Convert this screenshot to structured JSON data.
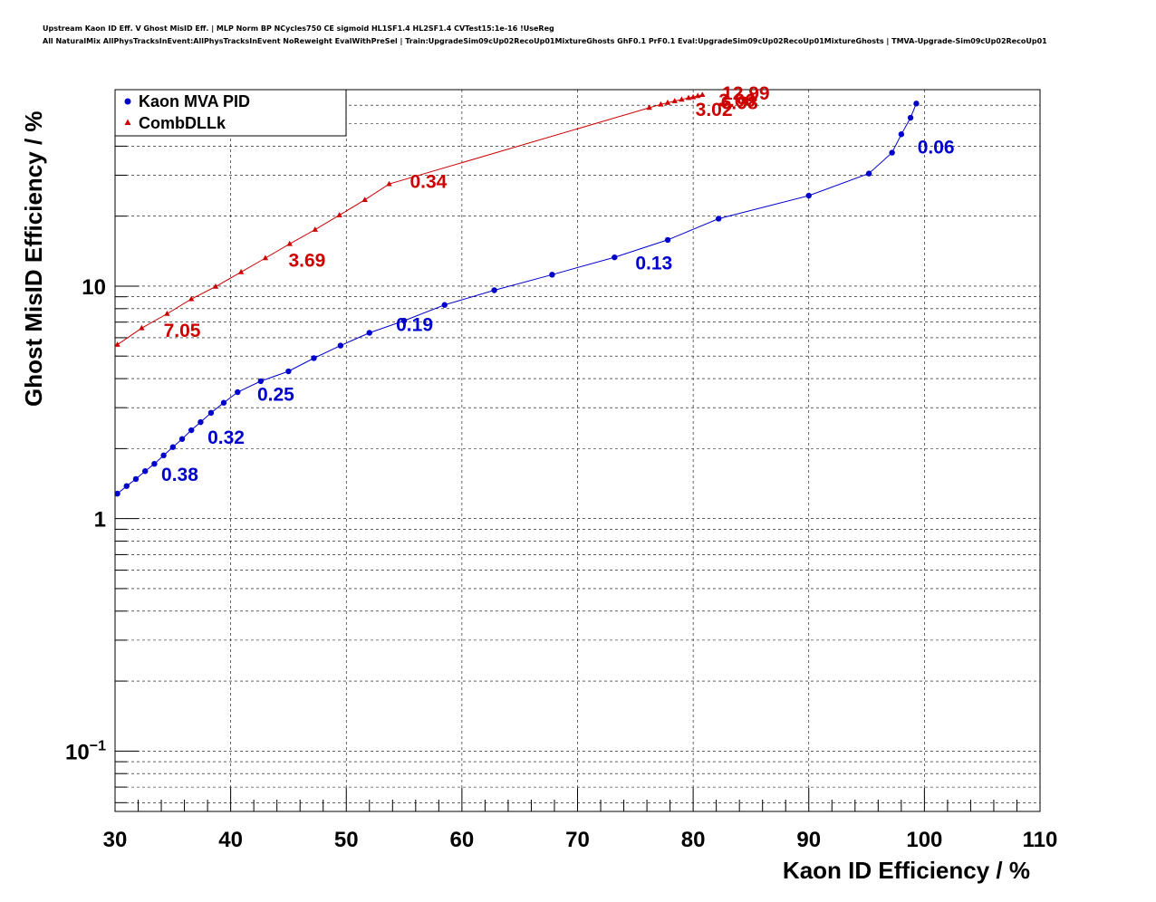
{
  "header": {
    "title_line1": "Upstream Kaon ID Eff. V Ghost MisID Eff. | MLP Norm BP NCycles750 CE sigmoid HL1SF1.4 HL2SF1.4 CVTest15:1e-16 !UseReg",
    "title_line2": "All NaturalMix AllPhysTracksInEvent:AllPhysTracksInEvent NoReweight EvalWithPreSel | Train:UpgradeSim09cUp02RecoUp01MixtureGhosts GhF0.1 PrF0.1 Eval:UpgradeSim09cUp02RecoUp01MixtureGhosts | TMVA-Upgrade-Sim09cUp02RecoUp01"
  },
  "chart_data": {
    "type": "line",
    "xlabel": "Kaon ID Efficiency / %",
    "ylabel": "Ghost MisID Efficiency / %",
    "xlim": [
      30,
      110
    ],
    "ylim": [
      0.055,
      70
    ],
    "yscale": "log",
    "grid": true,
    "legend_position": "top-left",
    "x_ticks": [
      30,
      40,
      50,
      60,
      70,
      80,
      90,
      100,
      110
    ],
    "y_ticks": [
      {
        "value": 0.1,
        "base": "10",
        "exp": "−1"
      },
      {
        "value": 1,
        "label": "1"
      },
      {
        "value": 10,
        "label": "10"
      }
    ],
    "series": [
      {
        "name": "Kaon MVA PID",
        "color": "#0000cc",
        "marker": "circle",
        "points": [
          [
            30.2,
            1.28
          ],
          [
            31.0,
            1.38
          ],
          [
            31.8,
            1.48
          ],
          [
            32.6,
            1.6
          ],
          [
            33.4,
            1.72
          ],
          [
            34.2,
            1.87
          ],
          [
            35.0,
            2.03
          ],
          [
            35.8,
            2.2
          ],
          [
            36.6,
            2.4
          ],
          [
            37.4,
            2.6
          ],
          [
            38.3,
            2.85
          ],
          [
            39.4,
            3.15
          ],
          [
            40.6,
            3.5
          ],
          [
            42.6,
            3.9
          ],
          [
            45.0,
            4.3
          ],
          [
            47.2,
            4.9
          ],
          [
            49.5,
            5.55
          ],
          [
            52.0,
            6.3
          ],
          [
            55.0,
            7.1
          ],
          [
            58.5,
            8.3
          ],
          [
            62.8,
            9.6
          ],
          [
            67.8,
            11.2
          ],
          [
            73.2,
            13.3
          ],
          [
            77.8,
            15.8
          ],
          [
            82.2,
            19.5
          ],
          [
            90.0,
            24.5
          ],
          [
            95.2,
            30.5
          ],
          [
            97.2,
            37.5
          ],
          [
            98.0,
            45.0
          ],
          [
            98.8,
            53.0
          ],
          [
            99.3,
            61.0
          ]
        ],
        "labels": [
          {
            "text": "0.38",
            "x": 34.0,
            "y": 1.56
          },
          {
            "text": "0.32",
            "x": 38.0,
            "y": 2.25
          },
          {
            "text": "0.25",
            "x": 42.3,
            "y": 3.45
          },
          {
            "text": "0.19",
            "x": 54.3,
            "y": 6.9
          },
          {
            "text": "0.13",
            "x": 75.0,
            "y": 12.7
          },
          {
            "text": "0.06",
            "x": 99.4,
            "y": 40.0
          }
        ]
      },
      {
        "name": "CombDLLk",
        "color": "#cc0000",
        "marker": "triangle",
        "points": [
          [
            30.2,
            5.6
          ],
          [
            32.3,
            6.6
          ],
          [
            34.5,
            7.6
          ],
          [
            36.6,
            8.8
          ],
          [
            38.7,
            9.95
          ],
          [
            40.9,
            11.5
          ],
          [
            43.0,
            13.2
          ],
          [
            45.1,
            15.2
          ],
          [
            47.3,
            17.5
          ],
          [
            49.4,
            20.2
          ],
          [
            51.6,
            23.5
          ],
          [
            53.7,
            27.5
          ],
          [
            76.2,
            58.5
          ],
          [
            77.2,
            60.5
          ],
          [
            77.8,
            61.5
          ],
          [
            78.4,
            62.5
          ],
          [
            79.0,
            63.5
          ],
          [
            79.6,
            64.5
          ],
          [
            80.0,
            65.0
          ],
          [
            80.4,
            65.8
          ],
          [
            80.8,
            66.5
          ]
        ],
        "labels": [
          {
            "text": "7.05",
            "x": 34.2,
            "y": 6.5
          },
          {
            "text": "3.69",
            "x": 45.0,
            "y": 13.0
          },
          {
            "text": "0.34",
            "x": 55.5,
            "y": 28.4
          },
          {
            "text": "3.02",
            "x": 80.2,
            "y": 58.0
          },
          {
            "text": "3.06",
            "x": 82.2,
            "y": 63.5
          },
          {
            "text": "6.98",
            "x": 82.4,
            "y": 62.0
          },
          {
            "text": "12.99",
            "x": 82.5,
            "y": 68.2
          }
        ]
      }
    ]
  }
}
